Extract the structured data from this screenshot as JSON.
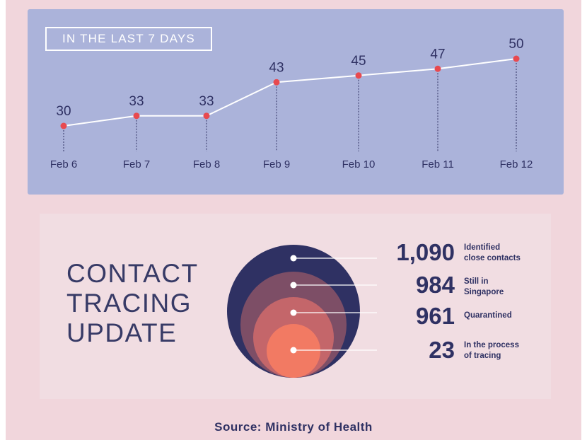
{
  "badge": "IN THE LAST 7 DAYS",
  "chart_data": {
    "type": "line",
    "title": "IN THE LAST 7 DAYS",
    "categories": [
      "Feb 6",
      "Feb 7",
      "Feb 8",
      "Feb 9",
      "Feb 10",
      "Feb 11",
      "Feb 12"
    ],
    "series": [
      {
        "values": [
          30,
          33,
          33,
          43,
          45,
          47,
          50
        ]
      }
    ],
    "xlabel": "",
    "ylabel": "",
    "ylim": [
      20,
      55
    ],
    "grid": false,
    "colors": {
      "line": "#ffffff",
      "point": "#e8494f",
      "label": "#2f3163"
    }
  },
  "tracing": {
    "title_lines": [
      "CONTACT",
      "TRACING",
      "UPDATE"
    ],
    "stats": [
      {
        "value": "1,090",
        "label": "Identified\nclose contacts",
        "color": "#2f3163"
      },
      {
        "value": "984",
        "label": "Still in\nSingapore",
        "color": "#7d4e66"
      },
      {
        "value": "961",
        "label": "Quarantined",
        "color": "#c4666a"
      },
      {
        "value": "23",
        "label": "In the process\nof tracing",
        "color": "#f27a63"
      }
    ]
  },
  "source": "Source: Ministry of Health"
}
